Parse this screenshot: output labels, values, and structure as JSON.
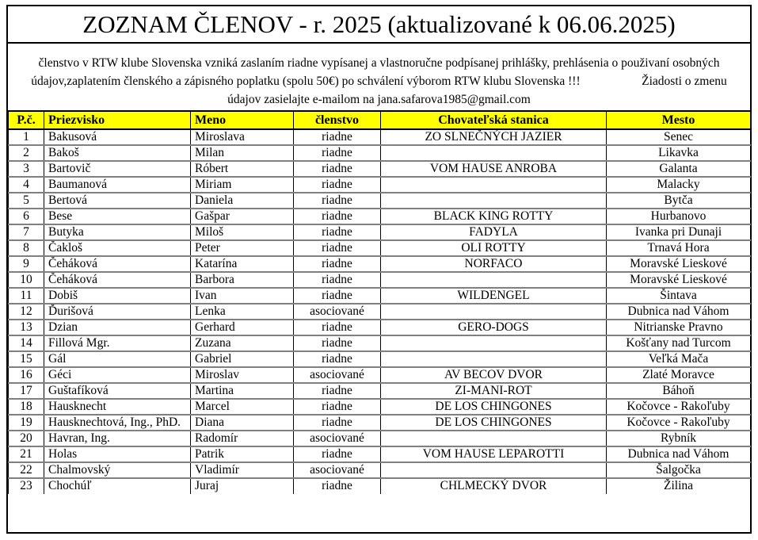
{
  "title": "ZOZNAM ČLENOV - r. 2025 (aktualizované k 06.06.2025)",
  "intro": {
    "line1": "členstvo v RTW klube Slovenska vzniká zaslaním riadne vypísanej a vlastnoručne podpísanej prihlášky, prehlásenia o použivaní osobných",
    "line2": "údajov,zaplatením členského a zápisného poplatku (spolu 50€) po schválení výborom RTW klubu Slovenska !!!                    Žiadosti o zmenu",
    "line3": "údajov zasielajte e-mailom na jana.safarova1985@gmail.com",
    "email": "jana.safarova1985@gmail.com"
  },
  "colors": {
    "header_bg": "#FFFF00",
    "outer_border": "#000000",
    "row_divider": "#808080",
    "text": "#000000"
  },
  "table": {
    "columns": [
      {
        "key": "pc",
        "label": "P.č."
      },
      {
        "key": "priezvisko",
        "label": "Priezvisko"
      },
      {
        "key": "meno",
        "label": "Meno"
      },
      {
        "key": "clenstvo",
        "label": "členstvo"
      },
      {
        "key": "stanica",
        "label": "Chovateľská stanica"
      },
      {
        "key": "mesto",
        "label": "Mesto"
      }
    ],
    "rows": [
      [
        "1",
        "Bakusová",
        "Miroslava",
        "riadne",
        "ZO SLNEČNÝCH JAZIER",
        "Senec"
      ],
      [
        "2",
        "Bakoš",
        "Milan",
        "riadne",
        "",
        "Likavka"
      ],
      [
        "3",
        "Bartovič",
        "Róbert",
        "riadne",
        "VOM HAUSE ANROBA",
        "Galanta"
      ],
      [
        "4",
        "Baumanová",
        "Miriam",
        "riadne",
        "",
        "Malacky"
      ],
      [
        "5",
        "Bertová",
        "Daniela",
        "riadne",
        "",
        "Bytča"
      ],
      [
        "6",
        "Bese",
        "Gašpar",
        "riadne",
        "BLACK KING ROTTY",
        "Hurbanovo"
      ],
      [
        "7",
        "Butyka",
        "Miloš",
        "riadne",
        "FADYLA",
        "Ivanka pri Dunaji"
      ],
      [
        "8",
        "Čakloš",
        "Peter",
        "riadne",
        "OLI ROTTY",
        "Trnavá Hora"
      ],
      [
        "9",
        "Čeháková",
        "Katarína",
        "riadne",
        "NORFACO",
        "Moravské Lieskové"
      ],
      [
        "10",
        "Čeháková",
        "Barbora",
        "riadne",
        "",
        "Moravské Lieskové"
      ],
      [
        "11",
        "Dobiš",
        "Ivan",
        "riadne",
        "WILDENGEL",
        "Šintava"
      ],
      [
        "12",
        "Ďurišová",
        "Lenka",
        "asociované",
        "",
        "Dubnica nad Váhom"
      ],
      [
        "13",
        "Dzian",
        "Gerhard",
        "riadne",
        "GERO-DOGS",
        "Nitrianske Pravno"
      ],
      [
        "14",
        "Fillová Mgr.",
        "Zuzana",
        "riadne",
        "",
        "Košťany nad Turcom"
      ],
      [
        "15",
        "Gál",
        "Gabriel",
        "riadne",
        "",
        "Veľká Mača"
      ],
      [
        "16",
        "Géci",
        "Miroslav",
        "asociované",
        "AV BECOV DVOR",
        "Zlaté Moravce"
      ],
      [
        "17",
        "Guštafíková",
        "Martina",
        "riadne",
        "ZI-MANI-ROT",
        "Báhoň"
      ],
      [
        "18",
        "Hausknecht",
        "Marcel",
        "riadne",
        "DE LOS CHINGONES",
        "Kočovce - Rakoľuby"
      ],
      [
        "19",
        "Hausknechtová, Ing., PhD.",
        "Diana",
        "riadne",
        "DE LOS CHINGONES",
        "Kočovce - Rakoľuby"
      ],
      [
        "20",
        "Havran, Ing.",
        "Radomír",
        "asociované",
        "",
        "Rybník"
      ],
      [
        "21",
        "Holas",
        "Patrik",
        "riadne",
        "VOM HAUSE LEPAROTTI",
        "Dubnica nad Váhom"
      ],
      [
        "22",
        "Chalmovský",
        "Vladimír",
        "asociované",
        "",
        "Šalgočka"
      ],
      [
        "23",
        "Chochúľ",
        "Juraj",
        "riadne",
        "CHLMECKÝ DVOR",
        "Žilina"
      ]
    ]
  }
}
